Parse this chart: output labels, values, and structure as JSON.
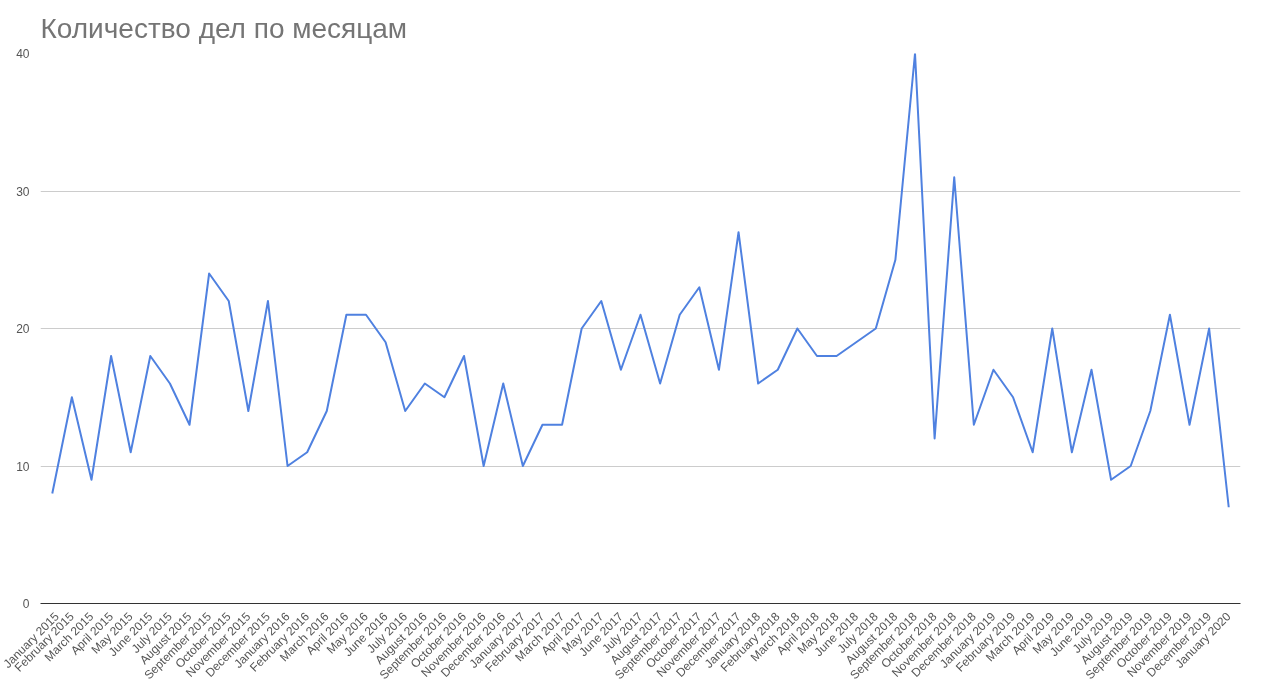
{
  "chart_data": {
    "type": "line",
    "title": "Количество дел по месяцам",
    "categories": [
      "January 2015",
      "February 2015",
      "March 2015",
      "April 2015",
      "May 2015",
      "June 2015",
      "July 2015",
      "August 2015",
      "September 2015",
      "October 2015",
      "November 2015",
      "December 2015",
      "January 2016",
      "February 2016",
      "March 2016",
      "April 2016",
      "May 2016",
      "June 2016",
      "July 2016",
      "August 2016",
      "September 2016",
      "October 2016",
      "November 2016",
      "December 2016",
      "January 2017",
      "February 2017",
      "March 2017",
      "April 2017",
      "May 2017",
      "June 2017",
      "July 2017",
      "August 2017",
      "September 2017",
      "October 2017",
      "November 2017",
      "December 2017",
      "January 2018",
      "February 2018",
      "March 2018",
      "April 2018",
      "May 2018",
      "June 2018",
      "July 2018",
      "August 2018",
      "September 2018",
      "October 2018",
      "November 2018",
      "December 2018",
      "January 2019",
      "February 2019",
      "March 2019",
      "April 2019",
      "May 2019",
      "June 2019",
      "July 2019",
      "August 2019",
      "September 2019",
      "October 2019",
      "November 2019",
      "December 2019",
      "January 2020"
    ],
    "series": [
      {
        "color": "#4f81e0",
        "values": [
          8,
          15,
          9,
          18,
          11,
          18,
          16,
          13,
          24,
          22,
          14,
          22,
          10,
          11,
          14,
          21,
          21,
          19,
          14,
          16,
          15,
          18,
          10,
          16,
          10,
          13,
          13,
          20,
          22,
          17,
          21,
          16,
          21,
          23,
          17,
          27,
          16,
          17,
          20,
          18,
          18,
          19,
          20,
          25,
          40,
          12,
          31,
          13,
          17,
          15,
          11,
          20,
          11,
          17,
          9,
          10,
          14,
          21,
          13,
          20,
          7
        ]
      }
    ],
    "ylim": [
      0,
      40
    ],
    "yticks": [
      0,
      10,
      20,
      30,
      40
    ],
    "grid": "y",
    "marker": "none",
    "line_style": "solid"
  }
}
